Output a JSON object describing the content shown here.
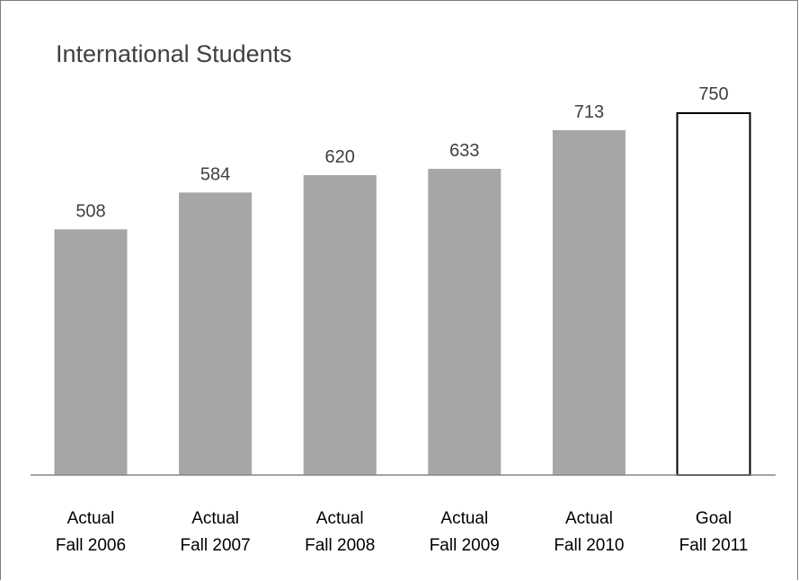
{
  "chart_data": {
    "type": "bar",
    "title": "International Students",
    "xlabel": "",
    "ylabel": "",
    "categories": [
      [
        "Actual",
        "Fall 2006"
      ],
      [
        "Actual",
        "Fall 2007"
      ],
      [
        "Actual",
        "Fall 2008"
      ],
      [
        "Actual",
        "Fall 2009"
      ],
      [
        "Actual",
        "Fall 2010"
      ],
      [
        "Goal",
        "Fall 2011"
      ]
    ],
    "values": [
      508,
      584,
      620,
      633,
      713,
      750
    ],
    "bar_styles": [
      "filled",
      "filled",
      "filled",
      "filled",
      "filled",
      "outline"
    ],
    "ylim": [
      0,
      750
    ],
    "grid": false,
    "legend": "none",
    "colors": {
      "bar_fill": "#a6a6a6",
      "goal_fill": "#ffffff",
      "goal_stroke": "#000000",
      "axis": "#868686",
      "label_text": "#404040",
      "category_text": "#000000"
    }
  }
}
